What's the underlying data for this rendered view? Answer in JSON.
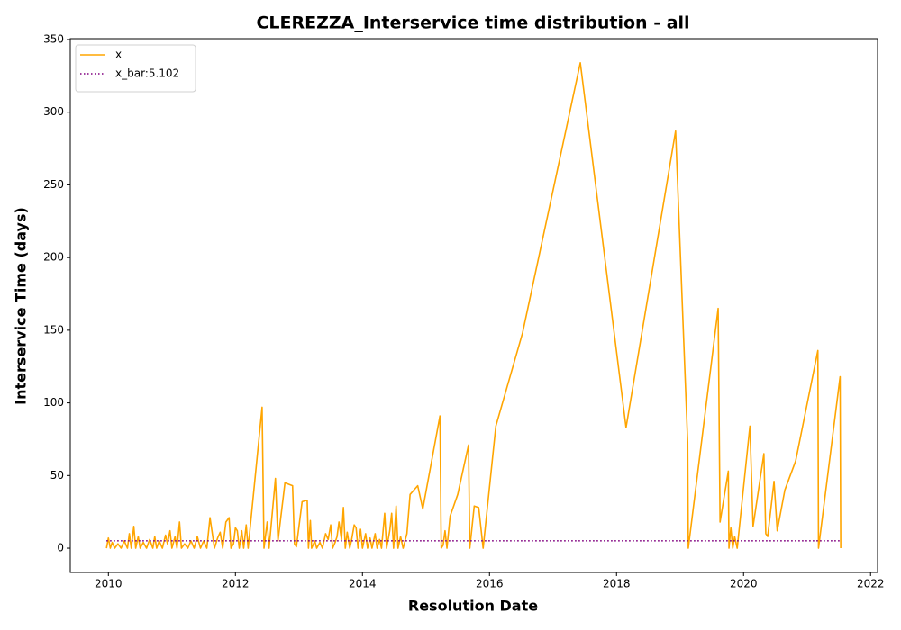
{
  "chart_data": {
    "type": "line",
    "title": "CLEREZZA_Interservice time distribution - all",
    "x_label": "Resolution Date",
    "y_label": "Interservice Time (days)",
    "xlim": [
      2009.4,
      2022.11
    ],
    "ylim": [
      -16.7,
      350.6
    ],
    "xticks": [
      2010,
      2012,
      2014,
      2016,
      2018,
      2020,
      2022
    ],
    "yticks": [
      0,
      50,
      100,
      150,
      200,
      250,
      300,
      350
    ],
    "legend": "upper left",
    "series": [
      {
        "name": "x",
        "color": "#ffa500",
        "linestyle": "solid",
        "x": [
          2009.97,
          2010.0,
          2010.03,
          2010.06,
          2010.1,
          2010.15,
          2010.2,
          2010.25,
          2010.3,
          2010.33,
          2010.36,
          2010.4,
          2010.43,
          2010.47,
          2010.5,
          2010.55,
          2010.6,
          2010.65,
          2010.7,
          2010.73,
          2010.76,
          2010.8,
          2010.85,
          2010.9,
          2010.93,
          2010.97,
          2011.0,
          2011.05,
          2011.08,
          2011.12,
          2011.15,
          2011.2,
          2011.25,
          2011.3,
          2011.35,
          2011.4,
          2011.45,
          2011.5,
          2011.55,
          2011.6,
          2011.67,
          2011.72,
          2011.76,
          2011.8,
          2011.85,
          2011.9,
          2011.93,
          2011.97,
          2012.0,
          2012.03,
          2012.06,
          2012.1,
          2012.13,
          2012.17,
          2012.2,
          2012.42,
          2012.45,
          2012.5,
          2012.53,
          2012.63,
          2012.67,
          2012.78,
          2012.9,
          2012.93,
          2012.96,
          2013.05,
          2013.13,
          2013.15,
          2013.18,
          2013.2,
          2013.25,
          2013.28,
          2013.33,
          2013.37,
          2013.42,
          2013.46,
          2013.5,
          2013.53,
          2013.57,
          2013.6,
          2013.63,
          2013.67,
          2013.7,
          2013.73,
          2013.76,
          2013.8,
          2013.83,
          2013.87,
          2013.9,
          2013.93,
          2013.97,
          2014.0,
          2014.05,
          2014.08,
          2014.12,
          2014.15,
          2014.2,
          2014.23,
          2014.27,
          2014.3,
          2014.35,
          2014.38,
          2014.43,
          2014.46,
          2014.49,
          2014.53,
          2014.56,
          2014.6,
          2014.64,
          2014.7,
          2014.75,
          2014.87,
          2014.95,
          2015.22,
          2015.24,
          2015.27,
          2015.3,
          2015.33,
          2015.38,
          2015.5,
          2015.67,
          2015.69,
          2015.76,
          2015.83,
          2015.9,
          2016.1,
          2016.52,
          2017.43,
          2018.15,
          2018.93,
          2019.12,
          2019.13,
          2019.6,
          2019.63,
          2019.76,
          2019.77,
          2019.8,
          2019.83,
          2019.86,
          2019.9,
          2020.1,
          2020.15,
          2020.32,
          2020.35,
          2020.38,
          2020.48,
          2020.53,
          2020.65,
          2020.82,
          2021.17,
          2021.18,
          2021.52,
          2021.53
        ],
        "values": [
          0,
          7,
          0,
          4,
          0,
          3,
          0,
          5,
          0,
          10,
          0,
          15,
          0,
          8,
          0,
          4,
          0,
          6,
          0,
          8,
          0,
          5,
          0,
          9,
          3,
          12,
          0,
          8,
          0,
          18,
          0,
          3,
          0,
          5,
          0,
          8,
          0,
          5,
          0,
          21,
          0,
          7,
          11,
          0,
          18,
          21,
          0,
          3,
          14,
          12,
          0,
          12,
          0,
          16,
          0,
          97,
          0,
          18,
          0,
          48,
          5,
          45,
          43,
          3,
          1,
          32,
          33,
          0,
          19,
          0,
          5,
          0,
          4,
          0,
          10,
          6,
          16,
          0,
          4,
          8,
          18,
          6,
          28,
          0,
          11,
          0,
          6,
          16,
          14,
          0,
          13,
          0,
          10,
          0,
          7,
          0,
          10,
          0,
          6,
          0,
          24,
          0,
          12,
          24,
          0,
          29,
          0,
          8,
          0,
          10,
          37,
          43,
          27,
          91,
          0,
          2,
          12,
          0,
          22,
          37,
          71,
          0,
          29,
          28,
          0,
          84,
          148,
          334,
          83,
          287,
          73,
          0,
          165,
          18,
          53,
          0,
          14,
          0,
          8,
          0,
          84,
          15,
          65,
          10,
          8,
          46,
          12,
          40,
          60,
          136,
          0,
          118,
          0
        ]
      },
      {
        "name": "x_bar:5.102",
        "color": "#800080",
        "linestyle": "dotted",
        "x": [
          2009.97,
          2021.53
        ],
        "values": [
          5.102,
          5.102
        ]
      }
    ]
  }
}
